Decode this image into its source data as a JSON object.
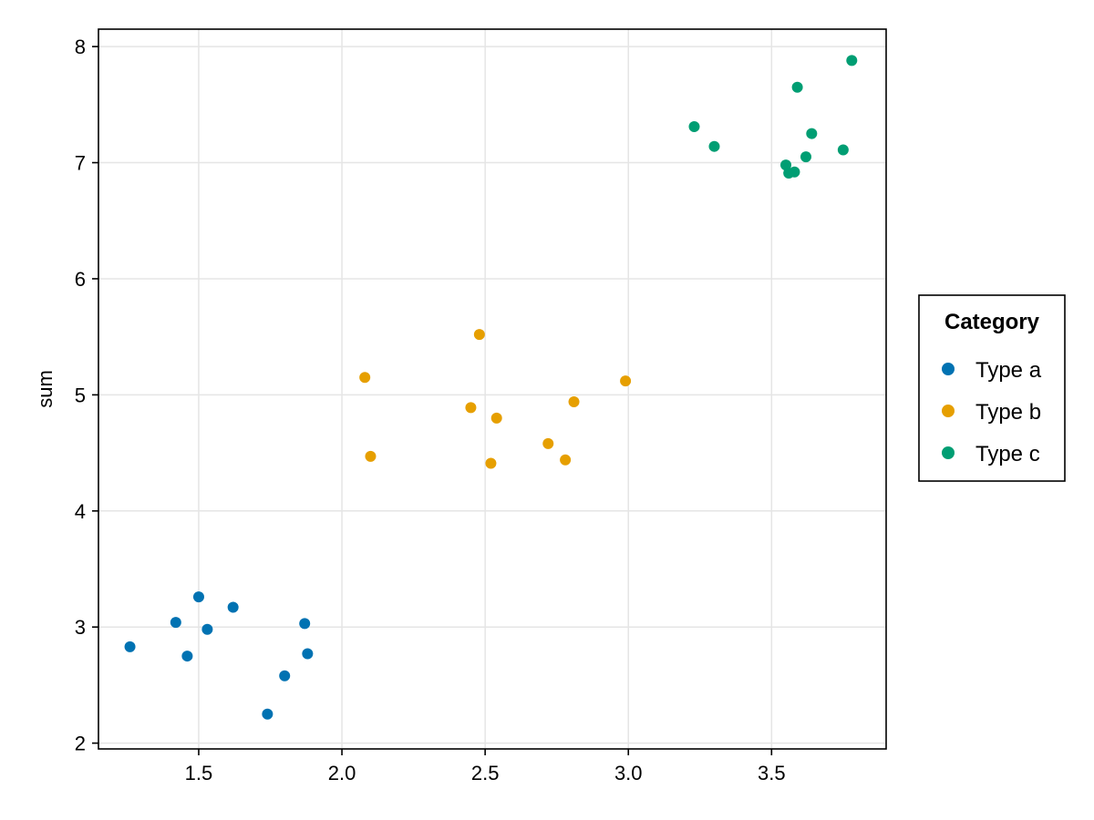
{
  "chart_data": {
    "type": "scatter",
    "title": "",
    "xlabel": "",
    "ylabel": "sum",
    "xlim": [
      1.15,
      3.9
    ],
    "ylim": [
      1.95,
      8.15
    ],
    "xticks": [
      "1.5",
      "2.0",
      "2.5",
      "3.0",
      "3.5"
    ],
    "yticks": [
      "2",
      "3",
      "4",
      "5",
      "6",
      "7",
      "8"
    ],
    "grid": true,
    "legend": {
      "title": "Category",
      "placement": "right"
    },
    "series": [
      {
        "name": "Type a",
        "color": "#0072b2",
        "points": [
          [
            1.26,
            2.83
          ],
          [
            1.42,
            3.04
          ],
          [
            1.46,
            2.75
          ],
          [
            1.5,
            3.26
          ],
          [
            1.53,
            2.98
          ],
          [
            1.62,
            3.17
          ],
          [
            1.74,
            2.25
          ],
          [
            1.8,
            2.58
          ],
          [
            1.87,
            3.03
          ],
          [
            1.88,
            2.77
          ]
        ]
      },
      {
        "name": "Type b",
        "color": "#e69f00",
        "points": [
          [
            2.08,
            5.15
          ],
          [
            2.1,
            4.47
          ],
          [
            2.45,
            4.89
          ],
          [
            2.48,
            5.52
          ],
          [
            2.52,
            4.41
          ],
          [
            2.54,
            4.8
          ],
          [
            2.72,
            4.58
          ],
          [
            2.78,
            4.44
          ],
          [
            2.81,
            4.94
          ],
          [
            2.99,
            5.12
          ]
        ]
      },
      {
        "name": "Type c",
        "color": "#009e73",
        "points": [
          [
            3.23,
            7.31
          ],
          [
            3.3,
            7.14
          ],
          [
            3.55,
            6.98
          ],
          [
            3.56,
            6.91
          ],
          [
            3.58,
            6.92
          ],
          [
            3.59,
            7.65
          ],
          [
            3.62,
            7.05
          ],
          [
            3.64,
            7.25
          ],
          [
            3.75,
            7.11
          ],
          [
            3.78,
            7.88
          ]
        ]
      }
    ]
  }
}
